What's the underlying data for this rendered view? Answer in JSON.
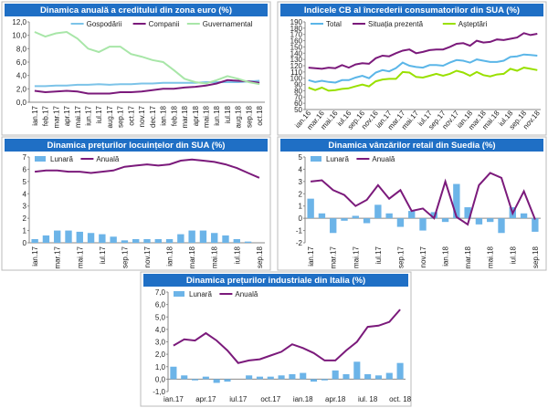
{
  "chart_data": [
    {
      "type": "combo",
      "title": "Dinamica anuală a creditului din zona euro (%)",
      "legend": "upper right",
      "categories": [
        "ian.17",
        "feb.17",
        "mar.17",
        "apr.17",
        "mai.17",
        "iun.17",
        "iul.17",
        "aug.17",
        "sep.17",
        "oct.17",
        "nov.17",
        "dec.17",
        "ian.18",
        "feb.18",
        "mar.18",
        "apr.18",
        "mai.18",
        "iun.18",
        "iul.18",
        "aug.18",
        "sep.18",
        "oct.18"
      ],
      "ylim": [
        0,
        12
      ],
      "yticks": [
        {
          "value": 0,
          "label": "0,0"
        },
        {
          "value": 2,
          "label": "2,0"
        },
        {
          "value": 4,
          "label": "4,0"
        },
        {
          "value": 6,
          "label": "6,0"
        },
        {
          "value": 8,
          "label": "8,0"
        },
        {
          "value": 10,
          "label": "10,0"
        },
        {
          "value": 12,
          "label": "12,0"
        }
      ],
      "series": [
        {
          "name": "Gospodării",
          "type": "line",
          "color": "#7cc3e8",
          "values": [
            2.4,
            2.4,
            2.5,
            2.5,
            2.6,
            2.6,
            2.7,
            2.6,
            2.7,
            2.7,
            2.8,
            2.8,
            2.9,
            2.9,
            2.9,
            2.9,
            3.0,
            3.0,
            3.0,
            3.0,
            3.1,
            3.2
          ]
        },
        {
          "name": "Companii",
          "type": "line",
          "color": "#7b1a7b",
          "values": [
            1.7,
            1.5,
            1.6,
            1.7,
            1.6,
            1.3,
            1.3,
            1.3,
            1.5,
            1.5,
            1.6,
            1.8,
            2.0,
            2.0,
            2.2,
            2.3,
            2.5,
            2.8,
            3.3,
            3.2,
            3.1,
            2.9
          ]
        },
        {
          "name": "Guvernamental",
          "type": "line",
          "color": "#a8e6a8",
          "values": [
            10.5,
            9.8,
            10.3,
            10.5,
            9.5,
            8.0,
            7.5,
            8.3,
            8.3,
            7.2,
            6.8,
            6.3,
            6.0,
            4.8,
            3.5,
            3.0,
            2.8,
            3.3,
            3.9,
            3.5,
            3.0,
            2.7
          ]
        }
      ]
    },
    {
      "type": "combo",
      "title": "Indicele CB al încrederii consumatorilor din SUA (%)",
      "legend": "upper left",
      "categories": [
        "ian.16",
        null,
        "mar.16",
        null,
        "mai.16",
        null,
        "iul.16",
        null,
        "sep.16",
        null,
        "nov.16",
        null,
        "ian.17",
        null,
        "mar.17",
        null,
        "mai.17",
        null,
        "iul.17",
        null,
        "sep.17",
        null,
        "nov.17",
        null,
        "ian.18",
        null,
        "mar.18",
        null,
        "mai.18",
        null,
        "iul.18",
        null,
        "sep.18",
        null,
        "nov.18"
      ],
      "ylim": [
        50,
        190
      ],
      "yticks": [
        50,
        60,
        70,
        80,
        90,
        100,
        110,
        120,
        130,
        140,
        150,
        160,
        170,
        180,
        190
      ],
      "series": [
        {
          "name": "Total",
          "type": "line",
          "color": "#5bb6e8",
          "values": [
            97,
            94,
            96,
            94,
            93,
            97,
            97,
            101,
            104,
            100,
            109,
            113,
            111,
            116,
            125,
            120,
            118,
            117,
            121,
            121,
            120,
            125,
            129,
            128,
            125,
            130,
            128,
            126,
            126,
            128,
            134,
            135,
            138,
            137,
            136
          ]
        },
        {
          "name": "Situația prezentă",
          "type": "line",
          "color": "#7b1a7b",
          "values": [
            117,
            116,
            115,
            117,
            116,
            121,
            117,
            122,
            124,
            123,
            132,
            136,
            135,
            140,
            144,
            146,
            140,
            142,
            145,
            146,
            146,
            150,
            155,
            156,
            152,
            160,
            157,
            158,
            162,
            161,
            163,
            165,
            172,
            169,
            171
          ]
        },
        {
          "name": "Așteptări",
          "type": "line",
          "color": "#99e000",
          "values": [
            85,
            81,
            85,
            80,
            81,
            83,
            84,
            87,
            90,
            87,
            95,
            98,
            99,
            99,
            110,
            109,
            102,
            101,
            104,
            107,
            104,
            107,
            112,
            109,
            104,
            110,
            105,
            103,
            106,
            107,
            115,
            112,
            117,
            115,
            113
          ]
        }
      ]
    },
    {
      "type": "combo",
      "title": "Dinamica prețurilor locuințelor din SUA (%)",
      "legend": "upper left",
      "categories": [
        "ian.17",
        null,
        "mar.17",
        null,
        "mai.17",
        null,
        "iul.17",
        null,
        "sep.17",
        null,
        "nov.17",
        null,
        "ian.18",
        null,
        "mar.18",
        null,
        "mai.18",
        null,
        "iul.18",
        null,
        "sep.18"
      ],
      "ylim": [
        0,
        7
      ],
      "yticks": [
        0,
        1,
        2,
        3,
        4,
        5,
        6,
        7
      ],
      "series": [
        {
          "name": "Lunară",
          "type": "bar",
          "color": "#6cb4e8",
          "values": [
            0.3,
            0.6,
            1.0,
            1.0,
            0.9,
            0.8,
            0.7,
            0.5,
            0.2,
            0.3,
            0.3,
            0.3,
            0.3,
            0.7,
            1.0,
            1.0,
            0.8,
            0.6,
            0.3,
            0.1,
            0.0
          ]
        },
        {
          "name": "Anuală",
          "type": "line",
          "color": "#7b1a7b",
          "values": [
            5.8,
            5.9,
            5.9,
            5.8,
            5.8,
            5.7,
            5.8,
            5.9,
            6.2,
            6.3,
            6.4,
            6.3,
            6.4,
            6.7,
            6.8,
            6.7,
            6.6,
            6.4,
            6.1,
            5.7,
            5.3
          ]
        }
      ]
    },
    {
      "type": "combo",
      "title": "Dinamica vânzărilor retail din Suedia (%)",
      "legend": "upper left",
      "categories": [
        "ian.17",
        null,
        "mar.17",
        null,
        "mai.17",
        null,
        "iul.17",
        null,
        "sep.17",
        null,
        "nov.17",
        null,
        "ian.18",
        null,
        "mar.18",
        null,
        "mai.18",
        null,
        "iul.18",
        null,
        "sep.18"
      ],
      "ylim": [
        -2,
        5
      ],
      "yticks": [
        -2,
        -1,
        0,
        1,
        2,
        3,
        4,
        5
      ],
      "series": [
        {
          "name": "Lunară",
          "type": "bar",
          "color": "#6cb4e8",
          "values": [
            1.6,
            0.4,
            -1.2,
            -0.2,
            0.2,
            -0.4,
            1.1,
            0.4,
            -0.7,
            0.6,
            -1.0,
            0.5,
            -0.3,
            2.8,
            0.9,
            -0.5,
            -0.3,
            -1.2,
            0.9,
            0.4,
            -1.1
          ]
        },
        {
          "name": "Anuală",
          "type": "line",
          "color": "#7b1a7b",
          "values": [
            3.0,
            3.1,
            2.3,
            1.9,
            1.0,
            1.5,
            2.7,
            1.6,
            2.3,
            0.6,
            0.8,
            0.0,
            3.0,
            0.1,
            -0.5,
            2.7,
            3.7,
            3.3,
            0.4,
            2.2,
            -0.1
          ]
        }
      ]
    },
    {
      "type": "combo",
      "title": "Dinamica prețurilor industriale din Italia (%)",
      "legend": "upper left",
      "categories": [
        "ian.17",
        null,
        null,
        "apr.17",
        null,
        null,
        "iul.17",
        null,
        null,
        "oct.17",
        null,
        null,
        "ian.18",
        null,
        null,
        "apr.18",
        null,
        null,
        "iul. 18",
        null,
        null,
        "oct. 18"
      ],
      "ylim": [
        -1,
        7
      ],
      "yticks": [
        {
          "value": -1,
          "label": "-1,0"
        },
        {
          "value": 0,
          "label": "0,0"
        },
        {
          "value": 1,
          "label": "1,0"
        },
        {
          "value": 2,
          "label": "2,0"
        },
        {
          "value": 3,
          "label": "3,0"
        },
        {
          "value": 4,
          "label": "4,0"
        },
        {
          "value": 5,
          "label": "5,0"
        },
        {
          "value": 6,
          "label": "6,0"
        },
        {
          "value": 7,
          "label": "7,0"
        }
      ],
      "series": [
        {
          "name": "Lunară",
          "type": "bar",
          "color": "#6cb4e8",
          "values": [
            1.0,
            0.3,
            -0.1,
            0.2,
            -0.3,
            -0.2,
            0.0,
            0.3,
            0.2,
            0.2,
            0.3,
            0.4,
            0.5,
            -0.2,
            -0.1,
            0.7,
            0.4,
            1.4,
            0.4,
            0.3,
            0.5,
            1.3
          ]
        },
        {
          "name": "Anuală",
          "type": "line",
          "color": "#7b1a7b",
          "values": [
            2.7,
            3.2,
            3.1,
            3.7,
            3.1,
            2.3,
            1.3,
            1.5,
            1.6,
            1.9,
            2.2,
            2.8,
            2.5,
            2.1,
            1.5,
            1.5,
            2.3,
            3.0,
            4.2,
            4.3,
            4.6,
            5.6
          ]
        }
      ]
    }
  ]
}
